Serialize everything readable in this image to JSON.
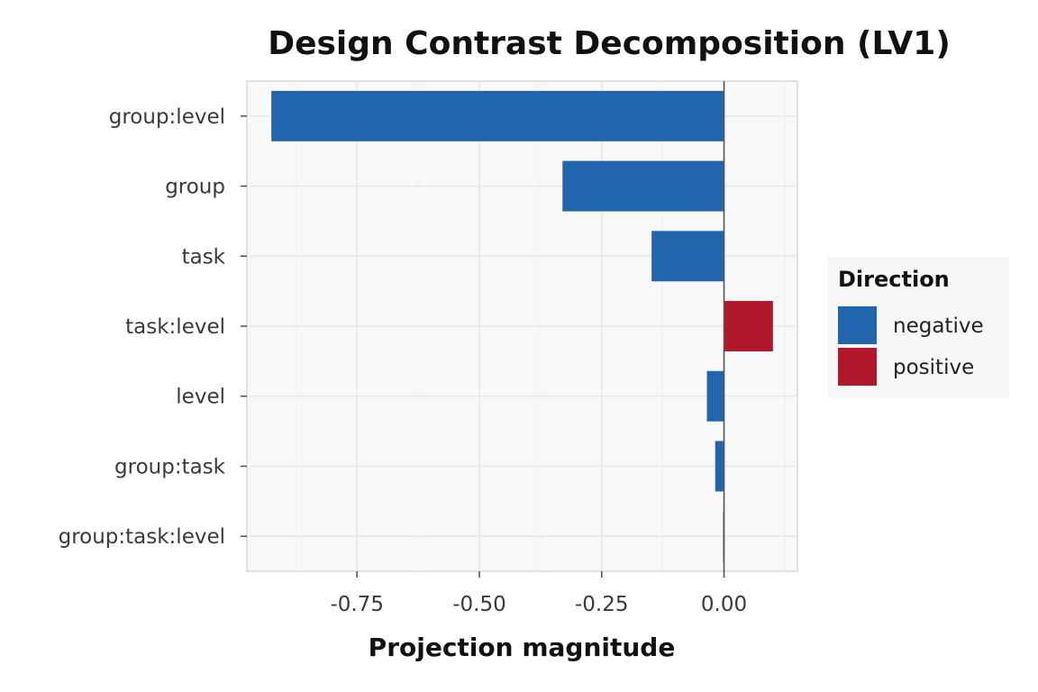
{
  "chart_data": {
    "type": "bar",
    "orientation": "horizontal",
    "title": "Design Contrast Decomposition (LV1)",
    "xlabel": "Projection magnitude",
    "ylabel": "",
    "categories": [
      "group:level",
      "group",
      "task",
      "task:level",
      "level",
      "group:task",
      "group:task:level"
    ],
    "values": [
      -0.925,
      -0.33,
      -0.148,
      0.1,
      -0.035,
      -0.018,
      -0.002
    ],
    "direction": [
      "negative",
      "negative",
      "negative",
      "positive",
      "negative",
      "negative",
      "negative"
    ],
    "xlim": [
      -0.975,
      0.15
    ],
    "xticks": [
      -0.75,
      -0.5,
      -0.25,
      0.0
    ],
    "xtick_labels": [
      "-0.75",
      "-0.50",
      "-0.25",
      "0.00"
    ],
    "grid": true,
    "reference_line": 0,
    "legend": {
      "title": "Direction",
      "position": "right",
      "entries": [
        {
          "label": "negative",
          "color": "#2166ac"
        },
        {
          "label": "positive",
          "color": "#b2182b"
        }
      ]
    }
  }
}
